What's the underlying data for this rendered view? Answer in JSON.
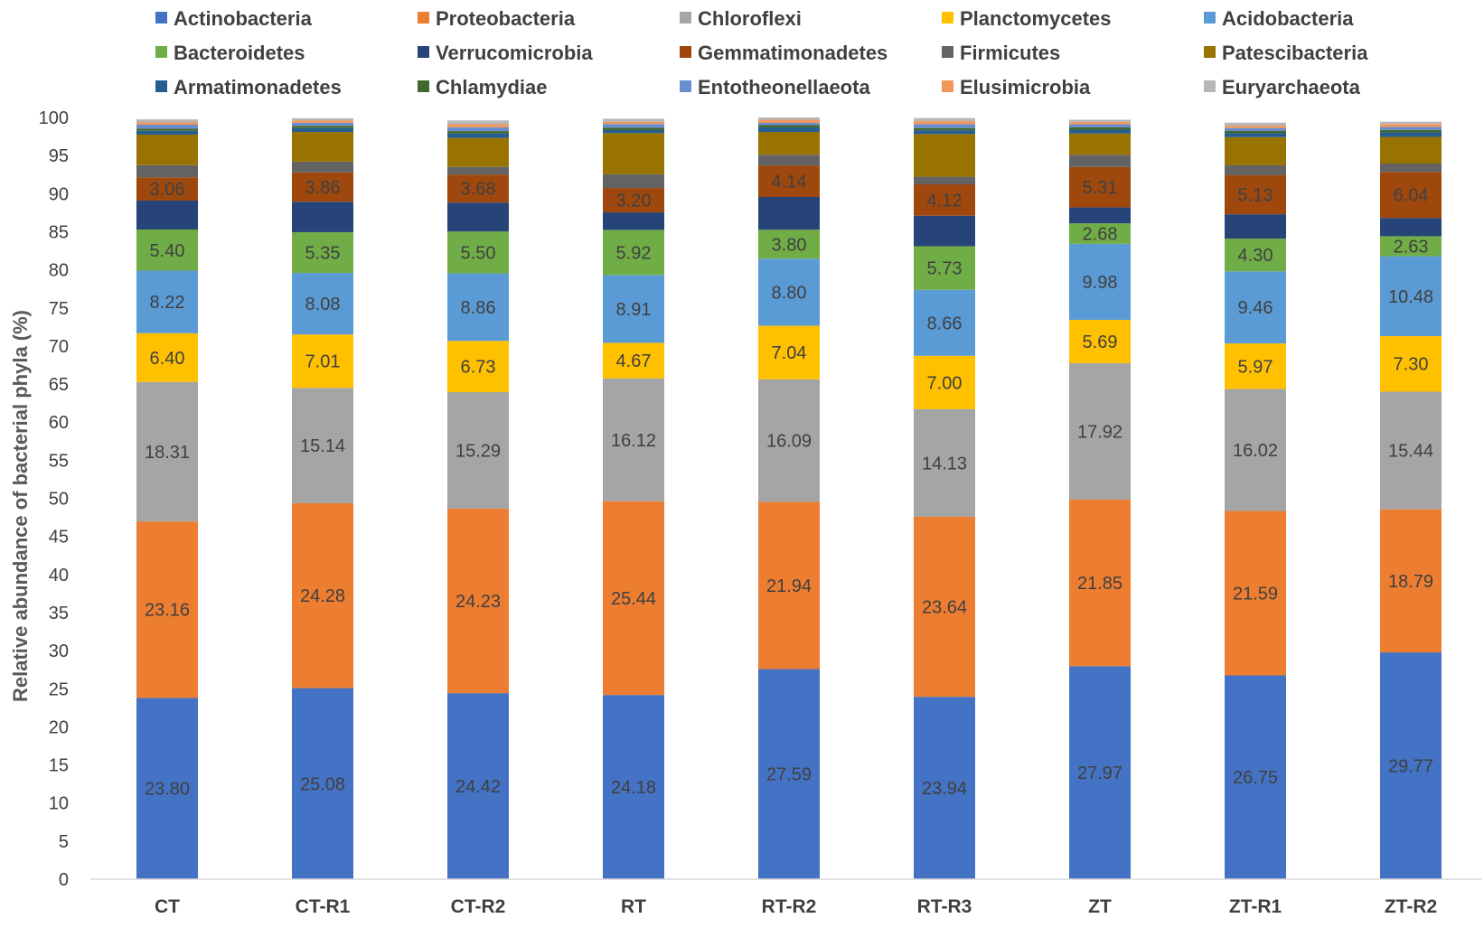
{
  "chart_data": {
    "type": "bar",
    "stacked": true,
    "title": "",
    "xlabel": "",
    "ylabel": "Relative abundance of bacterial phyla (%)",
    "ylim": [
      0,
      100
    ],
    "ytick_step": 5,
    "legend_position": "top",
    "categories": [
      "CT",
      "CT-R1",
      "CT-R2",
      "RT",
      "RT-R2",
      "RT-R3",
      "ZT",
      "ZT-R1",
      "ZT-R2"
    ],
    "series": [
      {
        "name": "Actinobacteria",
        "color": "#4472C4",
        "values": [
          23.8,
          25.08,
          24.42,
          24.18,
          27.59,
          23.94,
          27.97,
          26.75,
          29.77
        ],
        "labels": [
          "23.80",
          "25.08",
          "24.42",
          "24.18",
          "27.59",
          "23.94",
          "27.97",
          "26.75",
          "29.77"
        ]
      },
      {
        "name": "Proteobacteria",
        "color": "#ED7D31",
        "values": [
          23.16,
          24.28,
          24.23,
          25.44,
          21.94,
          23.64,
          21.85,
          21.59,
          18.79
        ],
        "labels": [
          "23.16",
          "24.28",
          "24.23",
          "25.44",
          "21.94",
          "23.64",
          "21.85",
          "21.59",
          "18.79"
        ]
      },
      {
        "name": "Chloroflexi",
        "color": "#A5A5A5",
        "values": [
          18.31,
          15.14,
          15.29,
          16.12,
          16.09,
          14.13,
          17.92,
          16.02,
          15.44
        ],
        "labels": [
          "18.31",
          "15.14",
          "15.29",
          "16.12",
          "16.09",
          "14.13",
          "17.92",
          "16.02",
          "15.44"
        ]
      },
      {
        "name": "Planctomycetes",
        "color": "#FFC000",
        "values": [
          6.4,
          7.01,
          6.73,
          4.67,
          7.04,
          7.0,
          5.69,
          5.97,
          7.3
        ],
        "labels": [
          "6.40",
          "7.01",
          "6.73",
          "4.67",
          "7.04",
          "7.00",
          "5.69",
          "5.97",
          "7.30"
        ]
      },
      {
        "name": "Acidobacteria",
        "color": "#5B9BD5",
        "values": [
          8.22,
          8.08,
          8.86,
          8.91,
          8.8,
          8.66,
          9.98,
          9.46,
          10.48
        ],
        "labels": [
          "8.22",
          "8.08",
          "8.86",
          "8.91",
          "8.80",
          "8.66",
          "9.98",
          "9.46",
          "10.48"
        ]
      },
      {
        "name": "Bacteroidetes",
        "color": "#70AD47",
        "values": [
          5.4,
          5.35,
          5.5,
          5.92,
          3.8,
          5.73,
          2.68,
          4.3,
          2.63
        ],
        "labels": [
          "5.40",
          "5.35",
          "5.50",
          "5.92",
          "3.80",
          "5.73",
          "2.68",
          "4.30",
          "2.63"
        ]
      },
      {
        "name": "Verrucomicrobia",
        "color": "#264478",
        "values": [
          3.8,
          4.0,
          3.8,
          2.3,
          4.3,
          4.0,
          2.1,
          3.2,
          2.4
        ],
        "labels": [
          null,
          null,
          null,
          null,
          null,
          null,
          null,
          null,
          null
        ]
      },
      {
        "name": "Gemmatimonadetes",
        "color": "#9E480E",
        "values": [
          3.06,
          3.86,
          3.68,
          3.2,
          4.14,
          4.12,
          5.31,
          5.13,
          6.04
        ],
        "labels": [
          "3.06",
          "3.86",
          "3.68",
          "3.20",
          "4.14",
          "4.12",
          "5.31",
          "5.13",
          "6.04"
        ]
      },
      {
        "name": "Firmicutes",
        "color": "#636363",
        "values": [
          1.6,
          1.4,
          1.0,
          1.8,
          1.4,
          1.0,
          1.6,
          1.3,
          1.1
        ],
        "labels": [
          null,
          null,
          null,
          null,
          null,
          null,
          null,
          null,
          null
        ]
      },
      {
        "name": "Patescibacteria",
        "color": "#997300",
        "values": [
          4.0,
          3.9,
          3.8,
          5.4,
          3.0,
          5.6,
          2.8,
          3.7,
          3.5
        ],
        "labels": [
          null,
          null,
          null,
          null,
          null,
          null,
          null,
          null,
          null
        ]
      },
      {
        "name": "Armatimonadetes",
        "color": "#255E91",
        "values": [
          0.5,
          0.5,
          0.6,
          0.4,
          0.6,
          0.5,
          0.5,
          0.5,
          0.6
        ],
        "labels": [
          null,
          null,
          null,
          null,
          null,
          null,
          null,
          null,
          null
        ]
      },
      {
        "name": "Chlamydiae",
        "color": "#43682B",
        "values": [
          0.3,
          0.3,
          0.3,
          0.3,
          0.3,
          0.3,
          0.3,
          0.3,
          0.3
        ],
        "labels": [
          null,
          null,
          null,
          null,
          null,
          null,
          null,
          null,
          null
        ]
      },
      {
        "name": "Entotheonellaeota",
        "color": "#698ED0",
        "values": [
          0.5,
          0.4,
          0.5,
          0.5,
          0.3,
          0.5,
          0.4,
          0.4,
          0.4
        ],
        "labels": [
          null,
          null,
          null,
          null,
          null,
          null,
          null,
          null,
          null
        ]
      },
      {
        "name": "Elusimicrobia",
        "color": "#F1975A",
        "values": [
          0.3,
          0.3,
          0.4,
          0.3,
          0.4,
          0.4,
          0.3,
          0.3,
          0.4
        ],
        "labels": [
          null,
          null,
          null,
          null,
          null,
          null,
          null,
          null,
          null
        ]
      },
      {
        "name": "Euryarchaeota",
        "color": "#B7B7B7",
        "values": [
          0.4,
          0.3,
          0.5,
          0.4,
          0.3,
          0.4,
          0.3,
          0.4,
          0.3
        ],
        "labels": [
          null,
          null,
          null,
          null,
          null,
          null,
          null,
          null,
          null
        ]
      }
    ]
  }
}
